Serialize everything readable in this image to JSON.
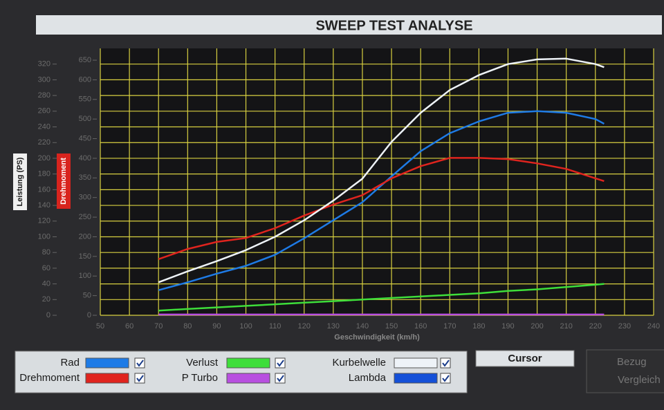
{
  "chart_data": {
    "type": "line",
    "title": "SWEEP TEST ANALYSE",
    "xlabel": "Geschwindigkeit (km/h)",
    "ylabel": "Leistung (PS)",
    "y2label": "Drehmoment",
    "x": [
      70,
      80,
      90,
      100,
      110,
      120,
      130,
      140,
      150,
      160,
      170,
      180,
      190,
      200,
      210,
      220,
      223
    ],
    "series": [
      {
        "name": "Rad",
        "color": "#1e7be6",
        "values": [
          32,
          42,
          53,
          63,
          77,
          98,
          121,
          144,
          177,
          209,
          232,
          247,
          258,
          260,
          258,
          250,
          244
        ]
      },
      {
        "name": "Drehmoment",
        "color": "#e0241e",
        "axis": "y2",
        "values": [
          143,
          169,
          187,
          197,
          222,
          254,
          282,
          306,
          349,
          380,
          401,
          401,
          398,
          387,
          373,
          349,
          342
        ]
      },
      {
        "name": "Verlust",
        "color": "#3ede3a",
        "values": [
          6,
          8,
          10,
          12,
          14,
          16,
          18,
          20,
          22,
          24,
          26,
          28,
          31,
          33,
          36,
          39,
          40
        ]
      },
      {
        "name": "P Turbo",
        "color": "#b84fe0",
        "values": [
          1,
          1,
          1,
          1,
          1,
          1,
          1,
          1,
          1,
          1,
          1,
          1,
          1,
          1,
          1,
          1,
          1
        ]
      },
      {
        "name": "Kurbelwelle",
        "color": "#eef3f8",
        "values": [
          42,
          56,
          69,
          83,
          100,
          121,
          146,
          174,
          221,
          258,
          287,
          306,
          320,
          326,
          327,
          320,
          316
        ]
      },
      {
        "name": "Lambda",
        "color": "#1450d8",
        "values": [
          null,
          null,
          null,
          null,
          null,
          null,
          null,
          null,
          null,
          null,
          null,
          null,
          null,
          null,
          null,
          null,
          null
        ]
      }
    ],
    "xlim": [
      50,
      240
    ],
    "xticks": [
      50,
      60,
      70,
      80,
      90,
      100,
      110,
      120,
      130,
      140,
      150,
      160,
      170,
      180,
      190,
      200,
      210,
      220,
      230,
      240
    ],
    "ylim": [
      0,
      340
    ],
    "yticks": [
      0,
      20,
      40,
      60,
      80,
      100,
      120,
      140,
      160,
      180,
      200,
      220,
      240,
      260,
      280,
      300,
      320
    ],
    "y2lim": [
      0,
      680
    ],
    "y2ticks": [
      0,
      50,
      100,
      150,
      200,
      250,
      300,
      350,
      400,
      450,
      500,
      550,
      600,
      650
    ],
    "grid": true,
    "grid_color": "#d8d040"
  },
  "ui": {
    "button": "Cursor",
    "compare_panel": [
      "Bezug",
      "Vergleich"
    ]
  }
}
